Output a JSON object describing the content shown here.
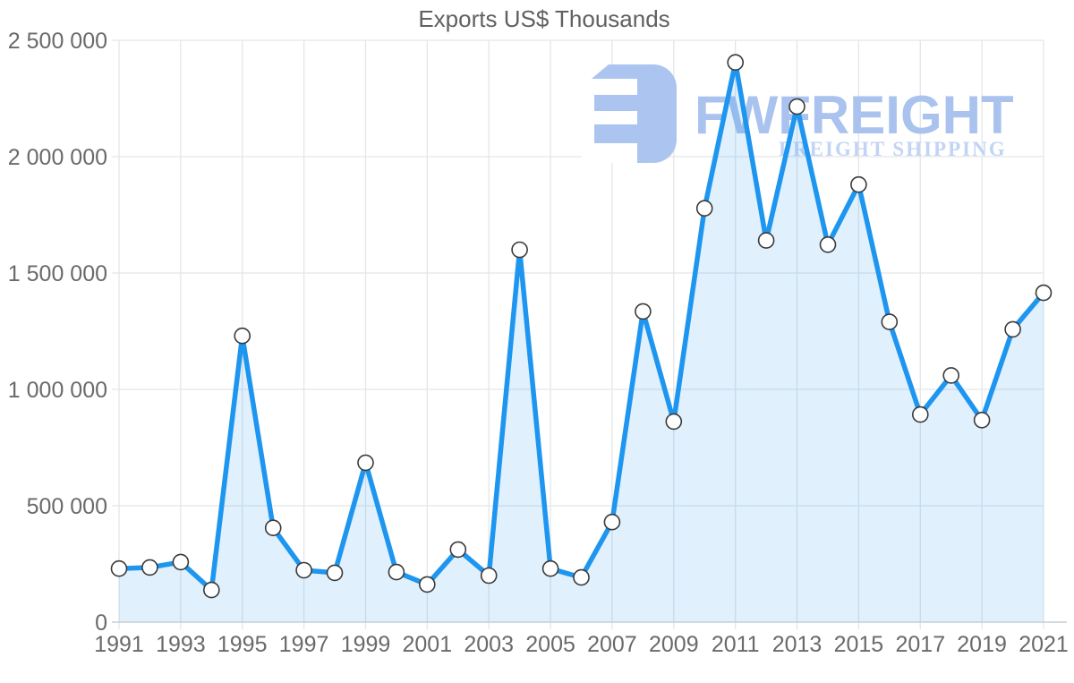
{
  "page": {
    "title": "Exports US$ Thousands"
  },
  "watermark": {
    "brand": "FWFREIGHT",
    "tagline": "FREIGHT SHIPPING",
    "icon_color": "#abc5f0",
    "brand_color": "#a9c3ee",
    "tagline_color": "#c2d4f4"
  },
  "chart_data": {
    "type": "line",
    "title": "Exports US$ Thousands",
    "xlabel": "",
    "ylabel": "",
    "x": [
      1991,
      1992,
      1993,
      1994,
      1995,
      1996,
      1997,
      1998,
      1999,
      2000,
      2001,
      2002,
      2003,
      2004,
      2005,
      2006,
      2007,
      2008,
      2009,
      2010,
      2011,
      2012,
      2013,
      2014,
      2015,
      2016,
      2017,
      2018,
      2019,
      2020,
      2021
    ],
    "series": [
      {
        "name": "Exports US$ Thousands",
        "values": [
          230000,
          235000,
          258000,
          138000,
          1230000,
          405000,
          223000,
          212000,
          685000,
          215000,
          162000,
          312000,
          200000,
          1600000,
          230000,
          192000,
          430000,
          1335000,
          862000,
          1778000,
          2405000,
          1640000,
          2215000,
          1622000,
          1880000,
          1290000,
          892000,
          1060000,
          868000,
          1258000,
          1415000
        ]
      }
    ],
    "x_tick_labels": [
      "1991",
      "1993",
      "1995",
      "1997",
      "1999",
      "2001",
      "2003",
      "2005",
      "2007",
      "2009",
      "2011",
      "2013",
      "2015",
      "2017",
      "2019",
      "2021"
    ],
    "y_ticks": [
      0,
      500000,
      1000000,
      1500000,
      2000000,
      2500000
    ],
    "y_tick_labels": [
      "0",
      "500 000",
      "1 000 000",
      "1 500 000",
      "2 000 000",
      "2 500 000"
    ],
    "ylim": [
      0,
      2500000
    ],
    "grid": true,
    "legend": "none",
    "marker": "circle",
    "colors": {
      "line": "#1e96f0",
      "area": "rgba(33,150,243,0.14)",
      "marker_fill": "#ffffff",
      "marker_stroke": "#3a3a3a",
      "grid": "#e3e6e8",
      "axis": "#c5ced6",
      "tick": "#d5dadf",
      "label": "#6a6a6a",
      "title": "#616161"
    }
  }
}
